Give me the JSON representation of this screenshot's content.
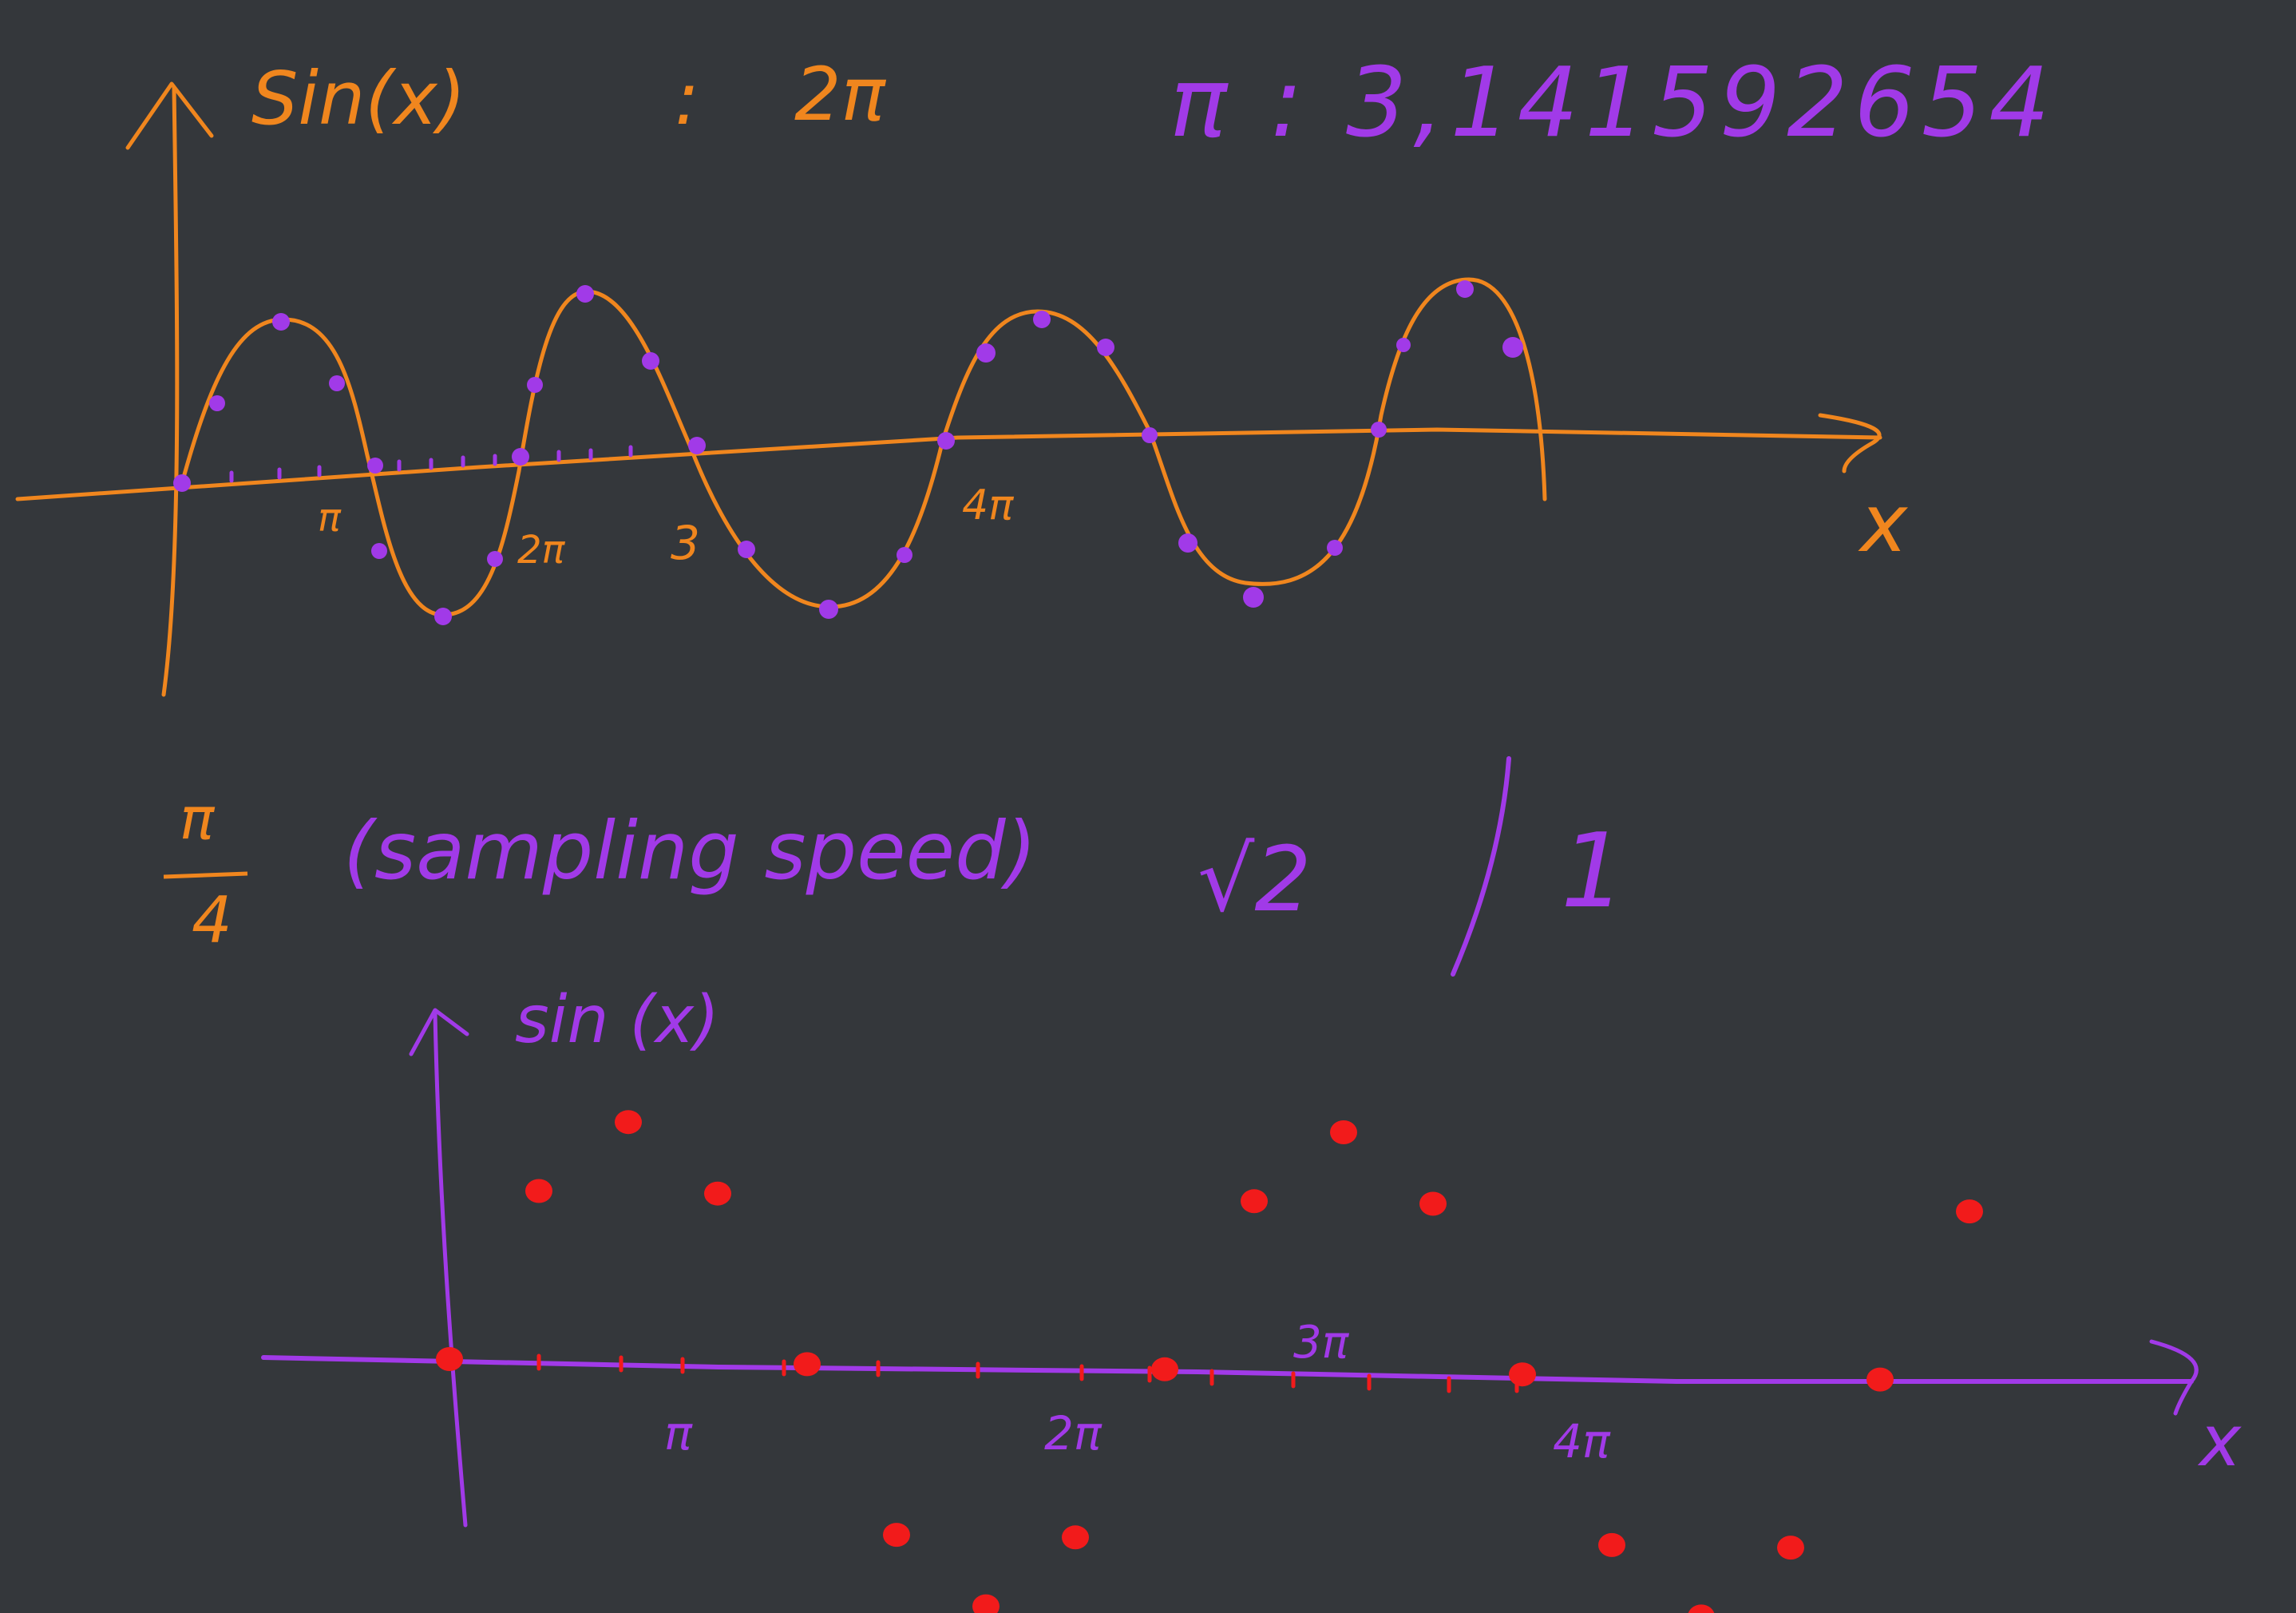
{
  "colors": {
    "background": "#34373b",
    "orange": "#f0861e",
    "purple": "#a13ae8",
    "red": "#f21b1b"
  },
  "top": {
    "ylabel": "Sin(x)",
    "separator": ":",
    "period": "2π",
    "pi_value": "π : 3,141592654",
    "xlabel": "x",
    "ticks": [
      "π",
      "2π",
      "3",
      "4π"
    ]
  },
  "middle": {
    "fraction_num": "π",
    "fraction_den": "4",
    "sampling_label": "(sampling speed)",
    "sqrt_label": "√2",
    "one_label": "1"
  },
  "bottom": {
    "ylabel": "sin (x)",
    "xlabel": "x",
    "ticks": [
      "π",
      "2π",
      "3π",
      "4π"
    ]
  },
  "chart_data": {
    "type": "scatter",
    "function": "sin(x)",
    "sampling_step": "π/4",
    "x": [
      "0",
      "π/4",
      "π/2",
      "3π/4",
      "π",
      "5π/4",
      "3π/2",
      "7π/4",
      "2π",
      "9π/4",
      "5π/2",
      "11π/4",
      "3π",
      "13π/4",
      "7π/2",
      "15π/4",
      "4π",
      "17π/4"
    ],
    "y": [
      0,
      0.707,
      1,
      0.707,
      0,
      -0.707,
      -1,
      -0.707,
      0,
      0.707,
      1,
      0.707,
      0,
      -0.707,
      -1,
      -0.707,
      0,
      0.707
    ]
  }
}
